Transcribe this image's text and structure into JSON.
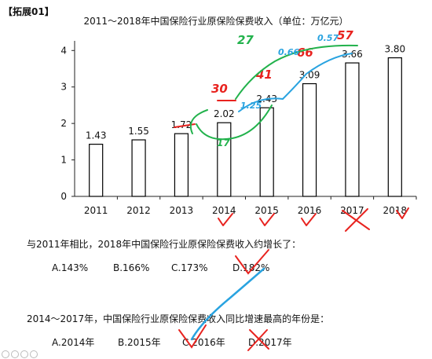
{
  "header": {
    "tag": "【拓展01】"
  },
  "chart_data": {
    "type": "bar",
    "title": "2011～2018年中国保险行业原保险保费收入（单位：万亿元）",
    "categories": [
      "2011",
      "2012",
      "2013",
      "2014",
      "2015",
      "2016",
      "2017",
      "2018"
    ],
    "values": [
      1.43,
      1.55,
      1.72,
      2.02,
      2.43,
      3.09,
      3.66,
      3.8
    ],
    "value_labels": [
      "1.43",
      "1.55",
      "1.72",
      "2.02",
      "2.43",
      "3.09",
      "3.66",
      "3.80"
    ],
    "yticks": [
      0,
      1,
      2,
      3,
      4
    ],
    "ylim": [
      0,
      4.2
    ],
    "xlabel": "",
    "ylabel": "",
    "grid": false,
    "bar_fill": "#ffffff",
    "bar_stroke": "#000000"
  },
  "annotations": {
    "red_numbers": [
      "30",
      "41",
      "66",
      "57"
    ],
    "blue_numbers": [
      "1.25",
      "0.66",
      "0.57"
    ],
    "green_numbers": [
      "27",
      "17"
    ],
    "colors": {
      "red": "#e8231f",
      "blue": "#29a3e0",
      "green": "#22b24c"
    }
  },
  "questions": [
    {
      "text": "与2011年相比，2018年中国保险行业原保险保费收入约增长了：",
      "options": [
        "A.143%",
        "B.166%",
        "C.173%",
        "D.182%"
      ]
    },
    {
      "text": "2014～2017年，中国保险行业原保险保费收入同比增速最高的年份是：",
      "options": [
        "A.2014年",
        "B.2015年",
        "C.2016年",
        "D.2017年"
      ]
    }
  ]
}
